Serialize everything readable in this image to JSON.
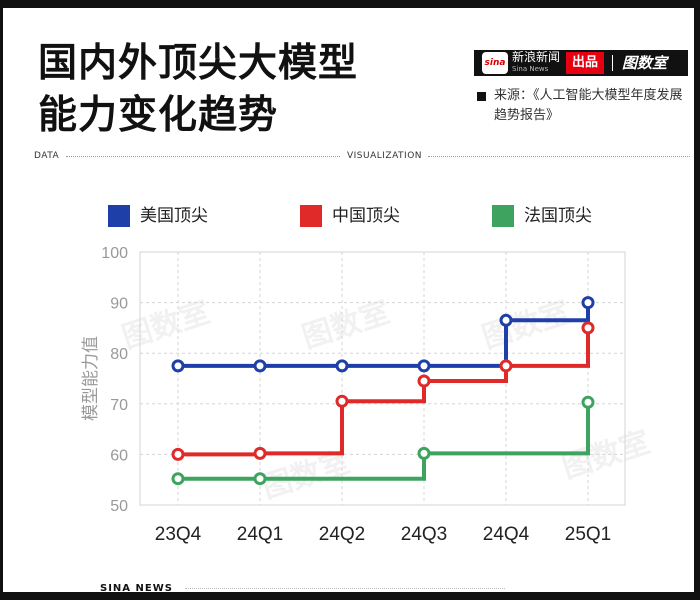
{
  "header": {
    "title_line1": "国内外顶尖大模型",
    "title_line2": "能力变化趋势"
  },
  "brand": {
    "logo": "sina",
    "name": "新浪新闻",
    "name_sub": "Sina News",
    "tag": "出品",
    "right_logo": "图数室"
  },
  "source": {
    "text": "来源：《人工智能大模型年度发展趋势报告》"
  },
  "band": {
    "left": "DATA",
    "right": "VISUALIZATION"
  },
  "footer": {
    "text": "SINA NEWS"
  },
  "colors": {
    "us": "#1f3fa8",
    "cn": "#e02a2a",
    "fr": "#3ea35e",
    "grid": "#d5d5d5",
    "axis_text": "#999999",
    "tick_text": "#222222"
  },
  "chart_data": {
    "type": "line",
    "step": true,
    "categories": [
      "23Q4",
      "24Q1",
      "24Q2",
      "24Q3",
      "24Q4",
      "25Q1"
    ],
    "ylabel": "模型能力值",
    "ylim": [
      50,
      100
    ],
    "yticks": [
      50,
      60,
      70,
      80,
      90,
      100
    ],
    "grid": true,
    "legend_position": "top",
    "series": [
      {
        "name": "美国顶尖",
        "color": "#1f3fa8",
        "values": [
          77.5,
          77.5,
          77.5,
          77.5,
          86.5,
          90
        ]
      },
      {
        "name": "中国顶尖",
        "color": "#e02a2a",
        "values": [
          60,
          60.2,
          70.5,
          74.5,
          77.5,
          85
        ]
      },
      {
        "name": "法国顶尖",
        "color": "#3ea35e",
        "values": [
          55.2,
          55.2,
          null,
          60.2,
          null,
          70.3
        ]
      }
    ]
  }
}
